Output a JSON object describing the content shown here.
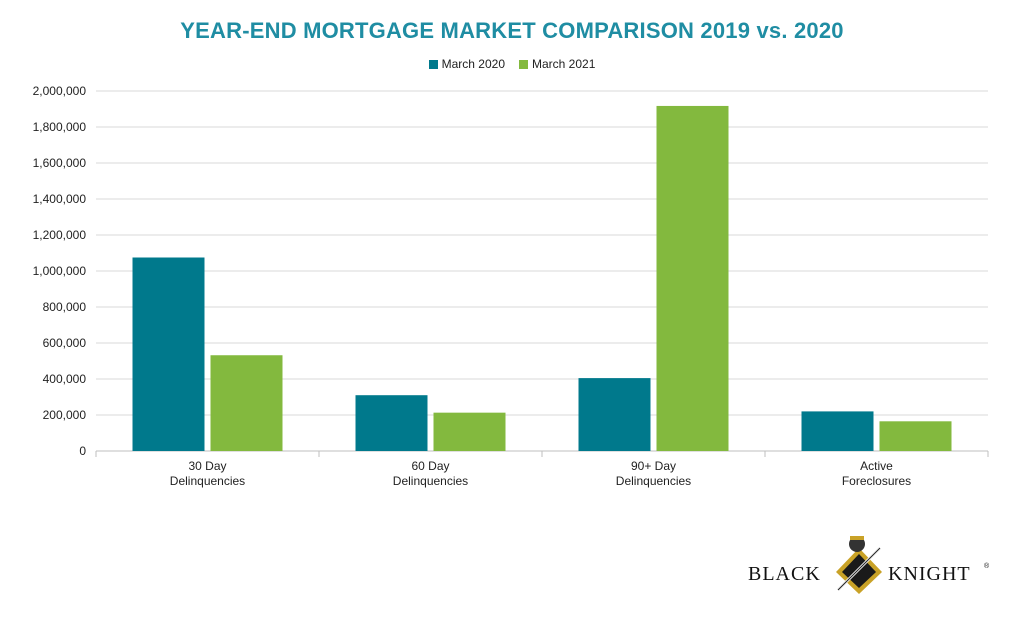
{
  "chart_data": {
    "type": "bar",
    "title": "YEAR-END MORTGAGE MARKET COMPARISON 2019 vs. 2020",
    "categories": [
      [
        "30 Day",
        "Delinquencies"
      ],
      [
        "60 Day",
        "Delinquencies"
      ],
      [
        "90+ Day",
        "Delinquencies"
      ],
      [
        "Active",
        "Foreclosures"
      ]
    ],
    "series": [
      {
        "name": "March 2020",
        "color": "#00798c",
        "values": [
          1075000,
          310000,
          405000,
          220000
        ]
      },
      {
        "name": "March 2021",
        "color": "#83b93e",
        "values": [
          532000,
          213000,
          1917000,
          165000
        ]
      }
    ],
    "yticks": [
      "0",
      "200,000",
      "400,000",
      "600,000",
      "800,000",
      "1,000,000",
      "1,200,000",
      "1,400,000",
      "1,600,000",
      "1,800,000",
      "2,000,000"
    ],
    "ylim": [
      0,
      2000000
    ],
    "grid": true,
    "legend_position": "top-center",
    "xlabel": "",
    "ylabel": ""
  },
  "logo": {
    "left_word": "BLACK",
    "right_word": "KNIGHT",
    "mark": "®"
  }
}
